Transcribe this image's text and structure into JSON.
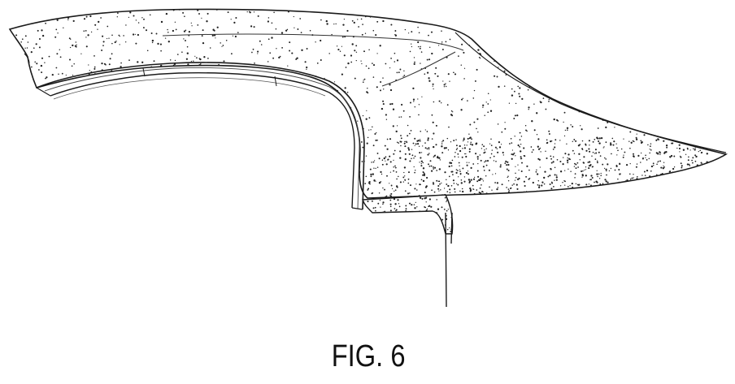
{
  "figure": {
    "caption": "FIG. 6"
  },
  "style": {
    "line_color": "#1a1a1a",
    "background_color": "#ffffff",
    "stipple_color": "#222222"
  }
}
